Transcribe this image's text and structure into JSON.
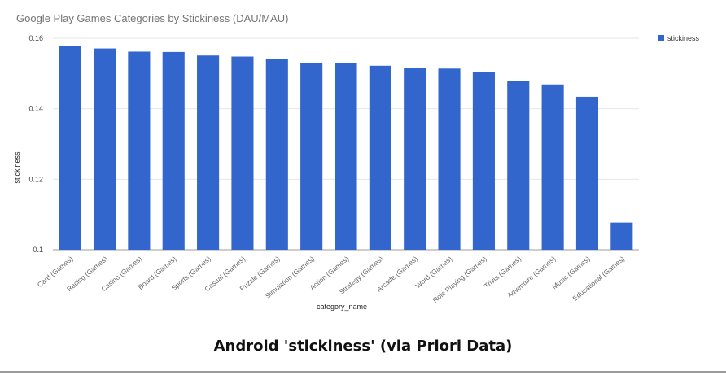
{
  "caption": "Android 'stickiness' (via Priori Data)",
  "chart_data": {
    "type": "bar",
    "title": "Google Play Games Categories by Stickiness (DAU/MAU)",
    "xlabel": "category_name",
    "ylabel": "stickiness",
    "ylim": [
      0.1,
      0.16
    ],
    "yticks": [
      0.1,
      0.12,
      0.14,
      0.16
    ],
    "ytick_labels": [
      "0.1",
      "0.12",
      "0.14",
      "0.16"
    ],
    "grid": true,
    "legend_position": "top-right",
    "bar_color": "#3366cc",
    "categories": [
      "Card (Games)",
      "Racing (Games)",
      "Casino (Games)",
      "Board (Games)",
      "Sports (Games)",
      "Casual (Games)",
      "Puzzle (Games)",
      "Simulation (Games)",
      "Action (Games)",
      "Strategy (Games)",
      "Arcade (Games)",
      "Word (Games)",
      "Role Playing (Games)",
      "Trivia (Games)",
      "Adventure (Games)",
      "Music (Games)",
      "Educational (Games)"
    ],
    "series": [
      {
        "name": "stickiness",
        "values": [
          0.1578,
          0.1571,
          0.1562,
          0.1561,
          0.1551,
          0.1548,
          0.1541,
          0.153,
          0.1529,
          0.1522,
          0.1516,
          0.1514,
          0.1505,
          0.1479,
          0.1469,
          0.1434,
          0.1077
        ]
      }
    ]
  }
}
